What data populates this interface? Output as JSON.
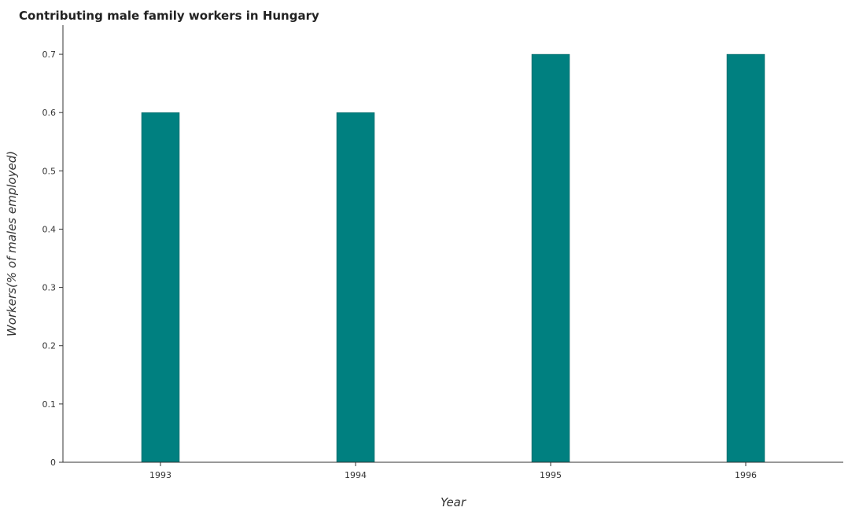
{
  "chart_data": {
    "type": "bar",
    "title": "Contributing male family workers in Hungary",
    "xlabel": "Year",
    "ylabel": "Workers(% of males employed)",
    "categories": [
      "1993",
      "1994",
      "1995",
      "1996"
    ],
    "values": [
      0.6,
      0.6,
      0.7,
      0.7
    ],
    "ylim": [
      0,
      0.75
    ],
    "yticks": [
      "0",
      "0.1",
      "0.2",
      "0.3",
      "0.4",
      "0.5",
      "0.6",
      "0.7"
    ],
    "grid": false,
    "legend": "none",
    "bar_color": "#008080"
  }
}
